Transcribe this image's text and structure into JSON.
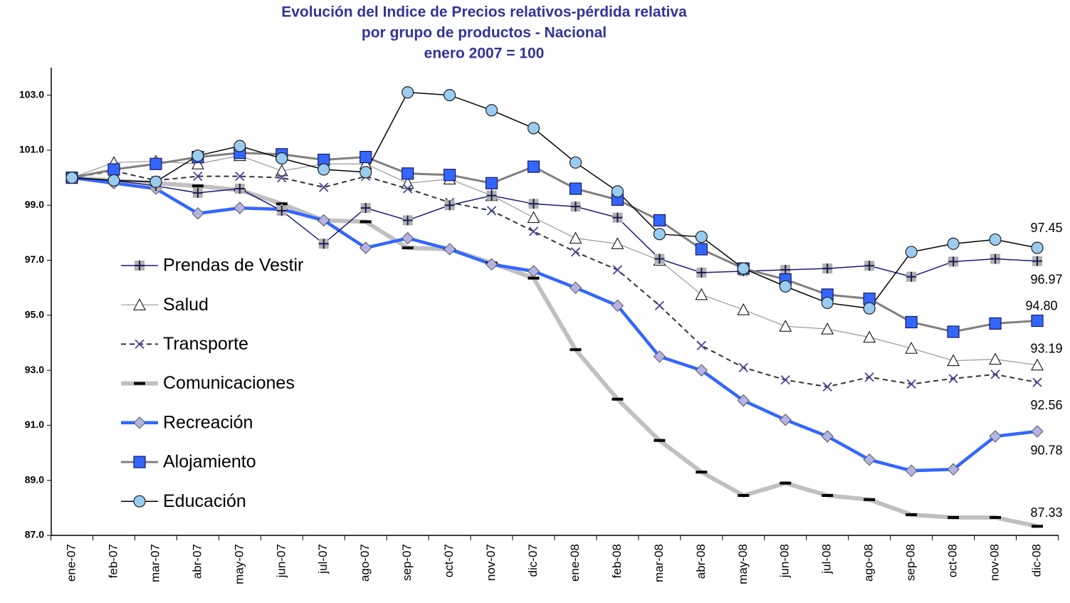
{
  "chart_data": {
    "type": "line",
    "title": [
      "Evolución del Indice de Precios relativos-pérdida relativa",
      "por grupo de productos - Nacional",
      "enero 2007 = 100"
    ],
    "categories": [
      "ene-07",
      "feb-07",
      "mar-07",
      "abr-07",
      "may-07",
      "jun-07",
      "jul-07",
      "ago-07",
      "sep-07",
      "oct-07",
      "nov-07",
      "dic-07",
      "ene-08",
      "feb-08",
      "mar-08",
      "abr-08",
      "may-08",
      "jun-08",
      "jul-08",
      "ago-08",
      "sep-08",
      "oct-08",
      "nov-08",
      "dic-08"
    ],
    "ylim": [
      87,
      104
    ],
    "yticks": [
      {
        "value": 87,
        "label": "87.0"
      },
      {
        "value": 89,
        "label": "89.0"
      },
      {
        "value": 91,
        "label": "91.0"
      },
      {
        "value": 93,
        "label": "93.0"
      },
      {
        "value": 95,
        "label": "95.0"
      },
      {
        "value": 97,
        "label": "97.0"
      },
      {
        "value": 99,
        "label": "99.0"
      },
      {
        "value": 101,
        "label": "101.0"
      },
      {
        "value": 103,
        "label": "103.0"
      }
    ],
    "grid": false,
    "legend": "left",
    "series": [
      {
        "name": "Prendas de Vestir",
        "color": "#1a1a80",
        "marker": "plus",
        "values": [
          100,
          99.9,
          99.7,
          99.45,
          99.6,
          98.8,
          97.6,
          98.9,
          98.45,
          99.0,
          99.35,
          99.05,
          98.95,
          98.55,
          97.05,
          96.55,
          96.6,
          96.65,
          96.7,
          96.8,
          96.4,
          96.95,
          97.05,
          96.97
        ],
        "value_labels": [
          null,
          null,
          null,
          null,
          null,
          null,
          null,
          null,
          null,
          null,
          null,
          null,
          null,
          null,
          null,
          null,
          null,
          null,
          null,
          null,
          null,
          null,
          null,
          "96.97"
        ]
      },
      {
        "name": "Salud",
        "color": "#999999",
        "marker": "triangle",
        "values": [
          100,
          100.55,
          100.6,
          100.5,
          100.8,
          100.25,
          100.5,
          100.5,
          99.8,
          99.95,
          99.35,
          98.55,
          97.8,
          97.6,
          97.0,
          95.75,
          95.2,
          94.6,
          94.5,
          94.2,
          93.8,
          93.35,
          93.4,
          93.19
        ],
        "value_labels": [
          null,
          null,
          null,
          null,
          null,
          null,
          null,
          null,
          null,
          null,
          null,
          null,
          null,
          null,
          null,
          null,
          null,
          null,
          null,
          null,
          null,
          null,
          null,
          "93.19"
        ]
      },
      {
        "name": "Transporte",
        "color": "#333333",
        "marker": "x",
        "dashed": true,
        "values": [
          100,
          100.25,
          99.9,
          100.05,
          100.05,
          100.0,
          99.65,
          100.05,
          99.6,
          99.1,
          98.8,
          98.05,
          97.3,
          96.65,
          95.35,
          93.9,
          93.1,
          92.65,
          92.4,
          92.75,
          92.5,
          92.7,
          92.85,
          92.56
        ],
        "value_labels": [
          null,
          null,
          null,
          null,
          null,
          null,
          null,
          null,
          null,
          null,
          null,
          null,
          null,
          null,
          null,
          null,
          null,
          null,
          null,
          null,
          null,
          null,
          null,
          "92.56"
        ]
      },
      {
        "name": "Comunicaciones",
        "color": "#c0c0c0",
        "marker": "dash",
        "values": [
          100,
          99.9,
          99.8,
          99.7,
          99.55,
          99.05,
          98.45,
          98.4,
          97.45,
          97.4,
          96.9,
          96.35,
          93.75,
          91.95,
          90.45,
          89.3,
          88.45,
          88.9,
          88.45,
          88.3,
          87.75,
          87.65,
          87.65,
          87.33
        ],
        "value_labels": [
          null,
          null,
          null,
          null,
          null,
          null,
          null,
          null,
          null,
          null,
          null,
          null,
          null,
          null,
          null,
          null,
          null,
          null,
          null,
          null,
          null,
          null,
          null,
          "87.33"
        ]
      },
      {
        "name": "Recreación",
        "color": "#3366ff",
        "marker": "diamond",
        "values": [
          100,
          99.8,
          99.6,
          98.7,
          98.9,
          98.85,
          98.45,
          97.45,
          97.8,
          97.4,
          96.85,
          96.6,
          96.0,
          95.35,
          93.5,
          93.0,
          91.9,
          91.2,
          90.6,
          89.75,
          89.35,
          89.4,
          90.6,
          90.78
        ],
        "value_labels": [
          null,
          null,
          null,
          null,
          null,
          null,
          null,
          null,
          null,
          null,
          null,
          null,
          null,
          null,
          null,
          null,
          null,
          null,
          null,
          null,
          null,
          null,
          null,
          "90.78"
        ]
      },
      {
        "name": "Alojamiento",
        "color": "#808080",
        "marker": "square",
        "values": [
          100,
          100.3,
          100.5,
          100.75,
          100.9,
          100.85,
          100.65,
          100.75,
          100.15,
          100.1,
          99.8,
          100.4,
          99.6,
          99.2,
          98.45,
          97.4,
          96.7,
          96.3,
          95.75,
          95.6,
          94.75,
          94.4,
          94.7,
          94.8
        ],
        "value_labels": [
          null,
          null,
          null,
          null,
          null,
          null,
          null,
          null,
          null,
          null,
          null,
          null,
          null,
          null,
          null,
          null,
          null,
          null,
          null,
          null,
          null,
          null,
          null,
          "94.80"
        ]
      },
      {
        "name": "Educación",
        "color": "#000000",
        "marker": "circle",
        "values": [
          100,
          99.9,
          99.85,
          100.8,
          101.15,
          100.7,
          100.3,
          100.2,
          103.1,
          103.0,
          102.45,
          101.8,
          100.55,
          99.5,
          97.95,
          97.85,
          96.7,
          96.05,
          95.45,
          95.25,
          97.3,
          97.6,
          97.75,
          97.45
        ],
        "value_labels": [
          null,
          null,
          null,
          null,
          null,
          null,
          null,
          null,
          null,
          null,
          null,
          null,
          null,
          null,
          null,
          null,
          null,
          null,
          null,
          null,
          null,
          null,
          null,
          "97.45"
        ]
      }
    ]
  }
}
